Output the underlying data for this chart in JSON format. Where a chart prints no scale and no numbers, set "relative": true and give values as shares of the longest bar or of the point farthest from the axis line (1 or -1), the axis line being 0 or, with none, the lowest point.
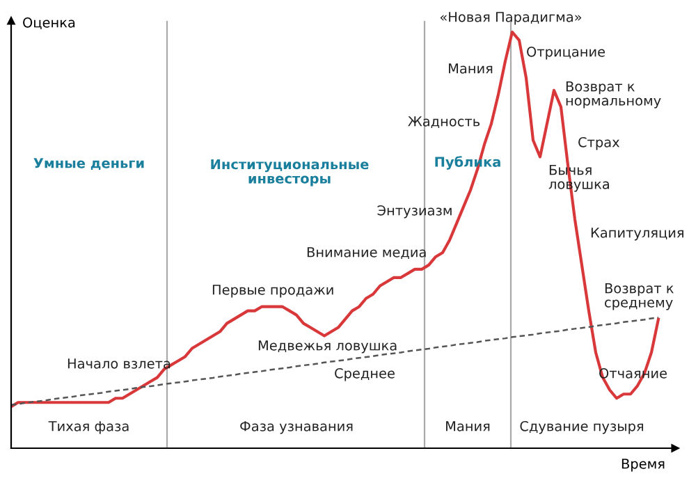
{
  "chart_data": {
    "type": "line",
    "relative": true,
    "xlabel": "Время",
    "ylabel": "Оценка",
    "tick_labels": false,
    "categories": [
      null,
      null,
      null,
      null,
      null,
      null,
      null,
      null,
      null,
      null,
      null,
      null,
      null,
      null,
      null,
      null,
      null,
      null,
      null,
      null,
      null,
      null,
      null,
      null,
      null,
      null,
      null,
      null,
      null,
      null,
      null,
      null,
      null,
      null,
      null,
      null,
      null,
      null,
      null,
      null,
      null,
      null,
      null,
      null,
      null,
      null,
      null,
      null,
      null,
      null,
      null,
      null,
      null,
      null,
      null,
      null,
      null,
      null,
      null,
      null,
      null,
      null,
      null,
      null,
      null,
      null,
      null,
      null,
      null,
      null,
      null,
      null,
      null,
      null,
      null,
      null,
      null,
      null,
      null,
      null,
      null,
      null,
      null,
      null,
      null,
      null,
      null,
      null,
      null,
      null,
      null,
      null,
      null,
      null
    ],
    "series": [
      {
        "color": "#d9383a",
        "line_style": "solid",
        "values": [
          0.1,
          0.11,
          0.11,
          0.11,
          0.11,
          0.11,
          0.11,
          0.11,
          0.11,
          0.11,
          0.11,
          0.11,
          0.11,
          0.11,
          0.11,
          0.12,
          0.12,
          0.13,
          0.14,
          0.15,
          0.16,
          0.17,
          0.19,
          0.2,
          0.21,
          0.22,
          0.24,
          0.25,
          0.26,
          0.27,
          0.28,
          0.3,
          0.31,
          0.32,
          0.33,
          0.33,
          0.34,
          0.34,
          0.34,
          0.34,
          0.33,
          0.32,
          0.3,
          0.29,
          0.28,
          0.27,
          0.28,
          0.29,
          0.31,
          0.33,
          0.34,
          0.36,
          0.37,
          0.39,
          0.4,
          0.41,
          0.41,
          0.42,
          0.43,
          0.43,
          0.44,
          0.46,
          0.47,
          0.5,
          0.54,
          0.58,
          0.62,
          0.67,
          0.73,
          0.78,
          0.85,
          0.93,
          1.0,
          0.98,
          0.89,
          0.74,
          0.7,
          0.78,
          0.86,
          0.82,
          0.68,
          0.55,
          0.44,
          0.33,
          0.23,
          0.17,
          0.14,
          0.12,
          0.13,
          0.13,
          0.15,
          0.18,
          0.23,
          0.31
        ]
      },
      {
        "color": "#555555",
        "line_style": "dashed",
        "values": [
          0.104,
          0.106,
          0.109,
          0.111,
          0.113,
          0.115,
          0.118,
          0.12,
          0.122,
          0.124,
          0.127,
          0.129,
          0.131,
          0.133,
          0.136,
          0.138,
          0.14,
          0.142,
          0.145,
          0.147,
          0.149,
          0.151,
          0.154,
          0.156,
          0.158,
          0.16,
          0.163,
          0.165,
          0.167,
          0.169,
          0.172,
          0.174,
          0.176,
          0.179,
          0.181,
          0.183,
          0.185,
          0.188,
          0.19,
          0.192,
          0.194,
          0.197,
          0.199,
          0.201,
          0.203,
          0.206,
          0.208,
          0.21,
          0.212,
          0.215,
          0.217,
          0.219,
          0.221,
          0.224,
          0.226,
          0.228,
          0.23,
          0.233,
          0.235,
          0.237,
          0.239,
          0.242,
          0.244,
          0.246,
          0.249,
          0.251,
          0.253,
          0.255,
          0.258,
          0.26,
          0.262,
          0.264,
          0.267,
          0.269,
          0.271,
          0.273,
          0.276,
          0.278,
          0.28,
          0.282,
          0.285,
          0.287,
          0.289,
          0.291,
          0.294,
          0.296,
          0.298,
          0.3,
          0.303,
          0.305,
          0.307,
          0.309,
          0.312,
          0.314
        ]
      }
    ],
    "annotations": [
      "«Новая Парадигма»",
      "Отрицание",
      "Мания",
      "Возврат к\nнормальному",
      "Жадность",
      "Страх",
      "Бычья\nловушка",
      "Энтузиазм",
      "Капитуляция",
      "Внимание медиа",
      "Первые продажи",
      "Возврат к\nсреднему",
      "Медвежья ловушка",
      "Начало взлета",
      "Среднее",
      "Отчаяние",
      "Умные деньги",
      "Институциональные\nинвесторы",
      "Публика",
      "Тихая фаза",
      "Фаза узнавания",
      "Мания",
      "Сдувание пузыря"
    ]
  }
}
